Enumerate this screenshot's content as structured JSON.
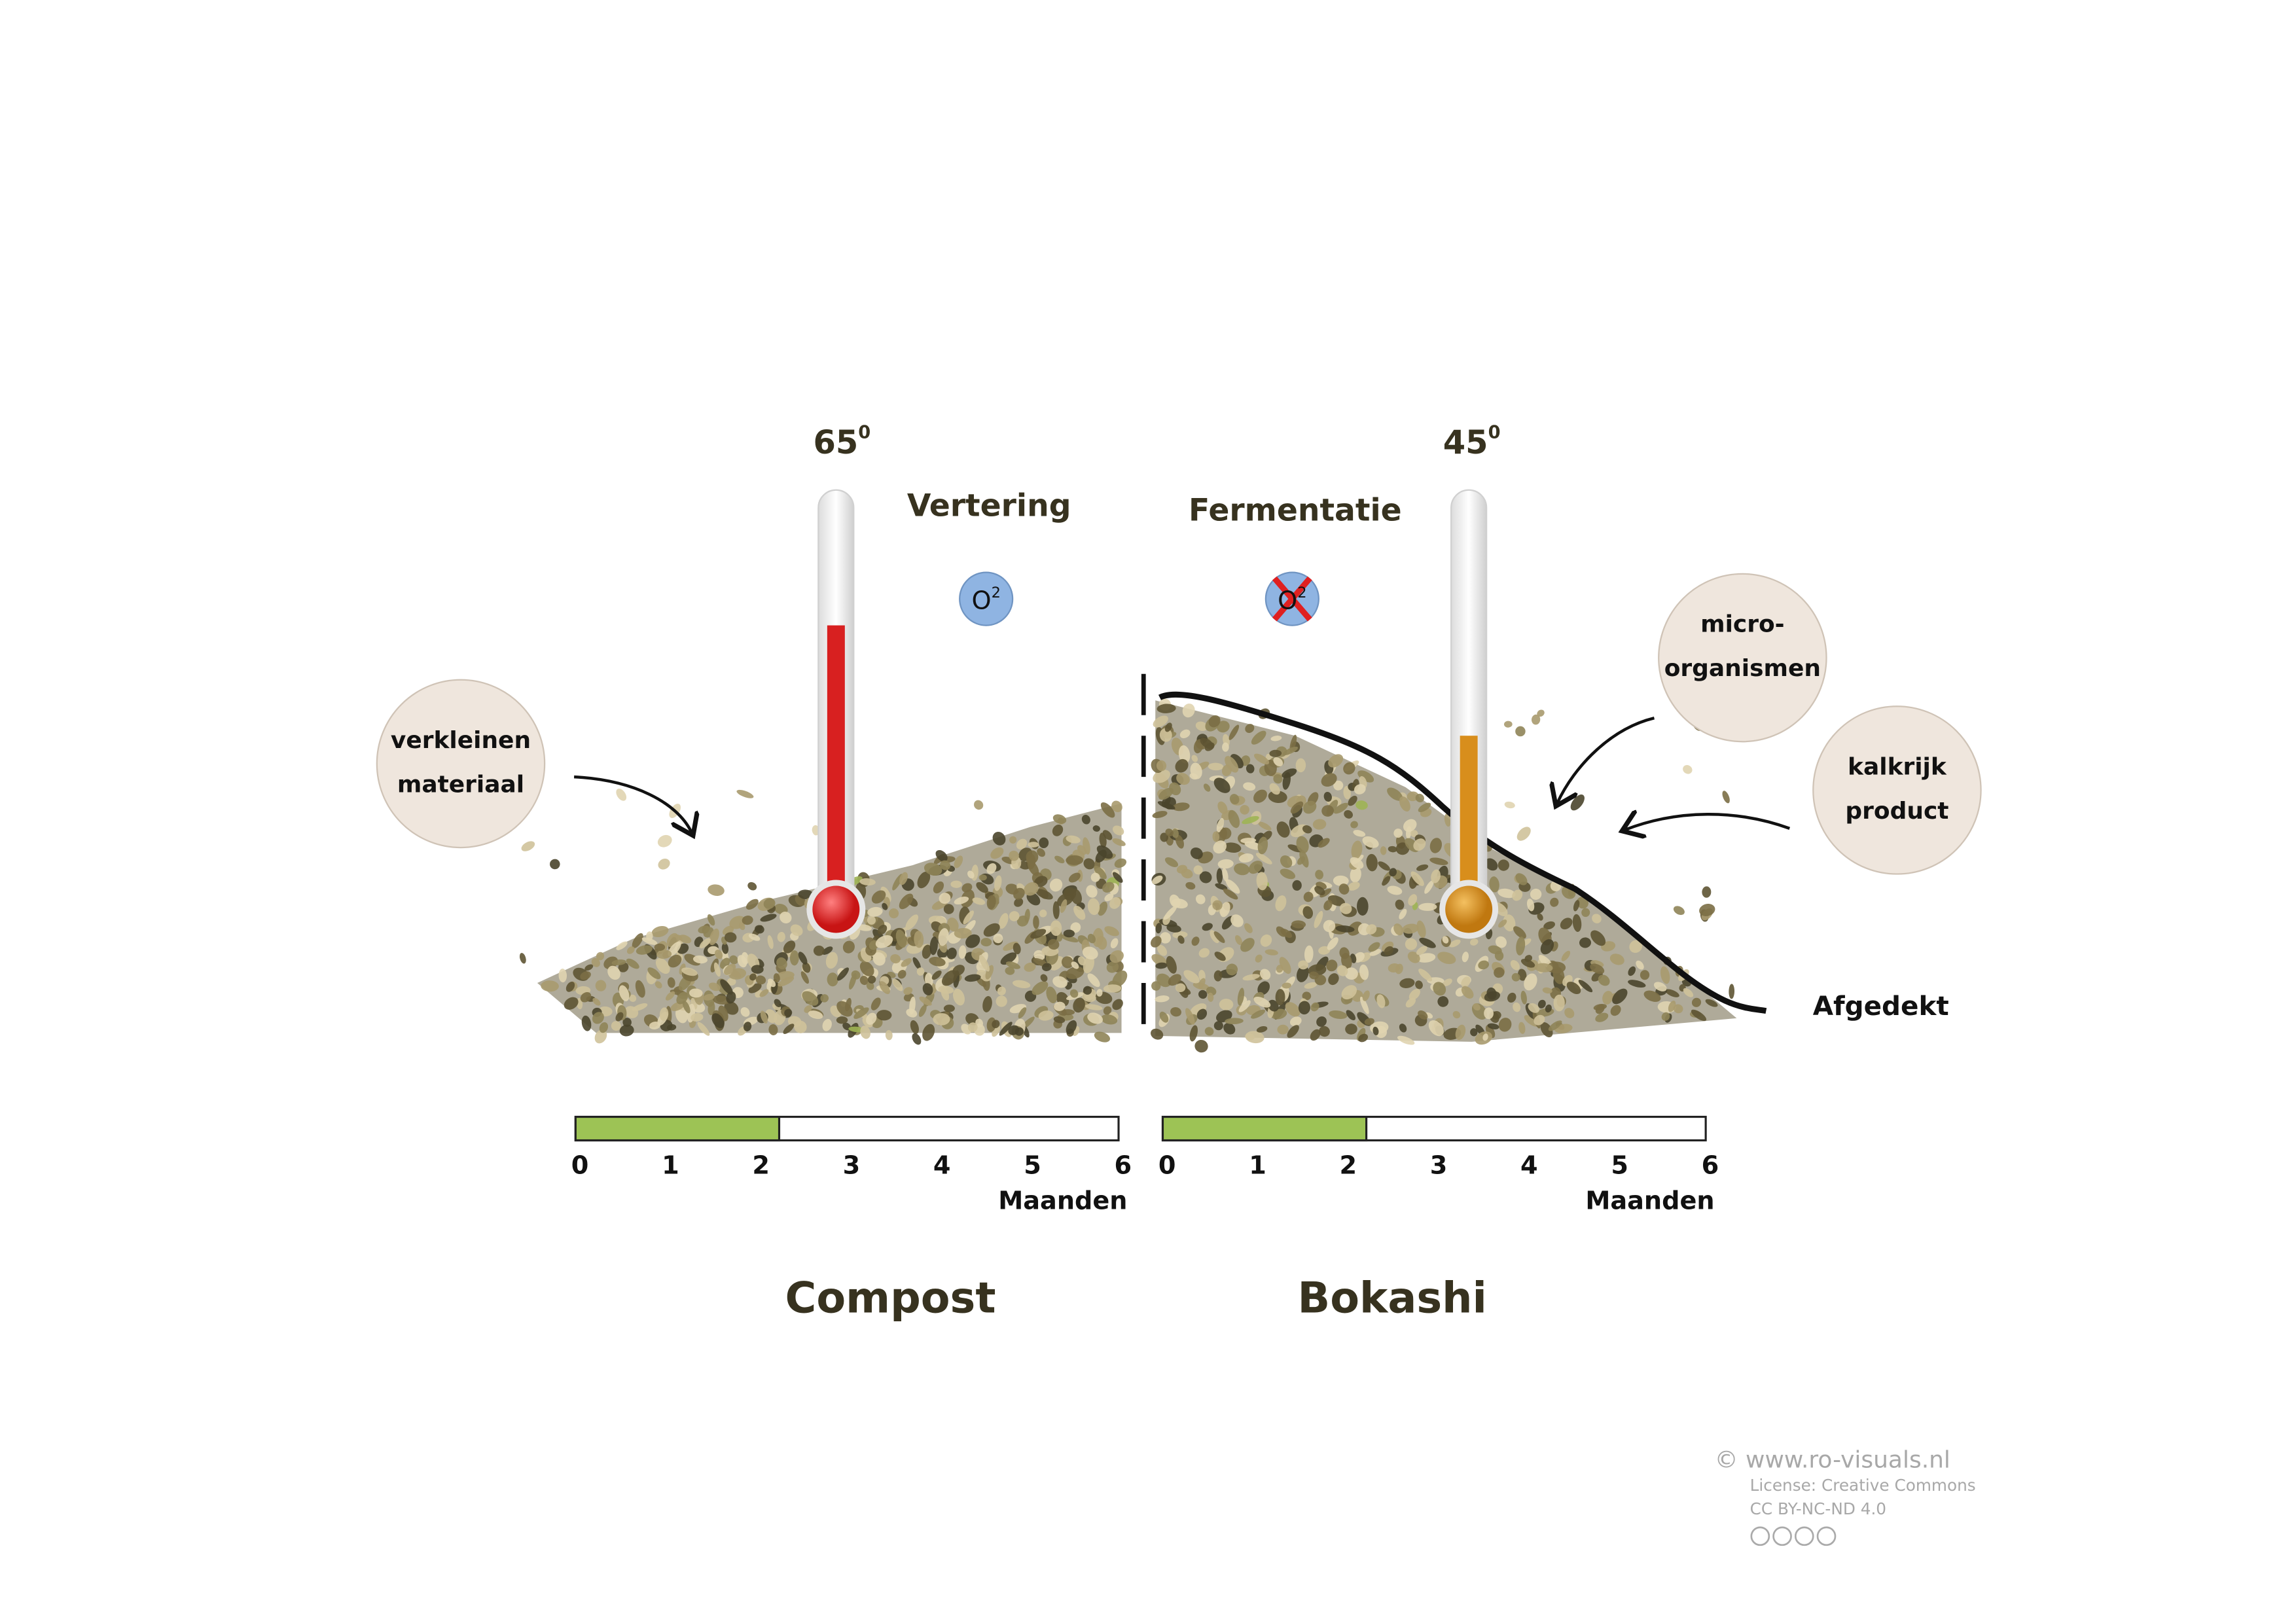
{
  "compost": {
    "title": "Compost",
    "process": "Vertering",
    "temperature": {
      "value": "65",
      "unit": "0"
    },
    "oxygen": {
      "symbol": "O",
      "superscript": "2"
    },
    "callouts": [
      {
        "lines": [
          "verkleinen",
          "materiaal"
        ]
      }
    ],
    "timeline": {
      "ticks": [
        0,
        1,
        2,
        3,
        4,
        5,
        6
      ],
      "unit": "Maanden",
      "filled": 2.25
    }
  },
  "bokashi": {
    "title": "Bokashi",
    "process": "Fermentatie",
    "temperature": {
      "value": "45",
      "unit": "0"
    },
    "oxygen": {
      "symbol": "O",
      "superscript": "2"
    },
    "callouts": [
      {
        "lines": [
          "micro-",
          "organismen"
        ]
      },
      {
        "lines": [
          "kalkrijk",
          "product"
        ]
      }
    ],
    "cover_label": "Afgedekt",
    "timeline": {
      "ticks": [
        0,
        1,
        2,
        3,
        4,
        5,
        6
      ],
      "unit": "Maanden",
      "filled": 2.25
    }
  },
  "footer": {
    "site": "© www.ro-visuals.nl",
    "license": "License: Creative Commons",
    "cc": "CC BY-NC-ND 4.0"
  }
}
